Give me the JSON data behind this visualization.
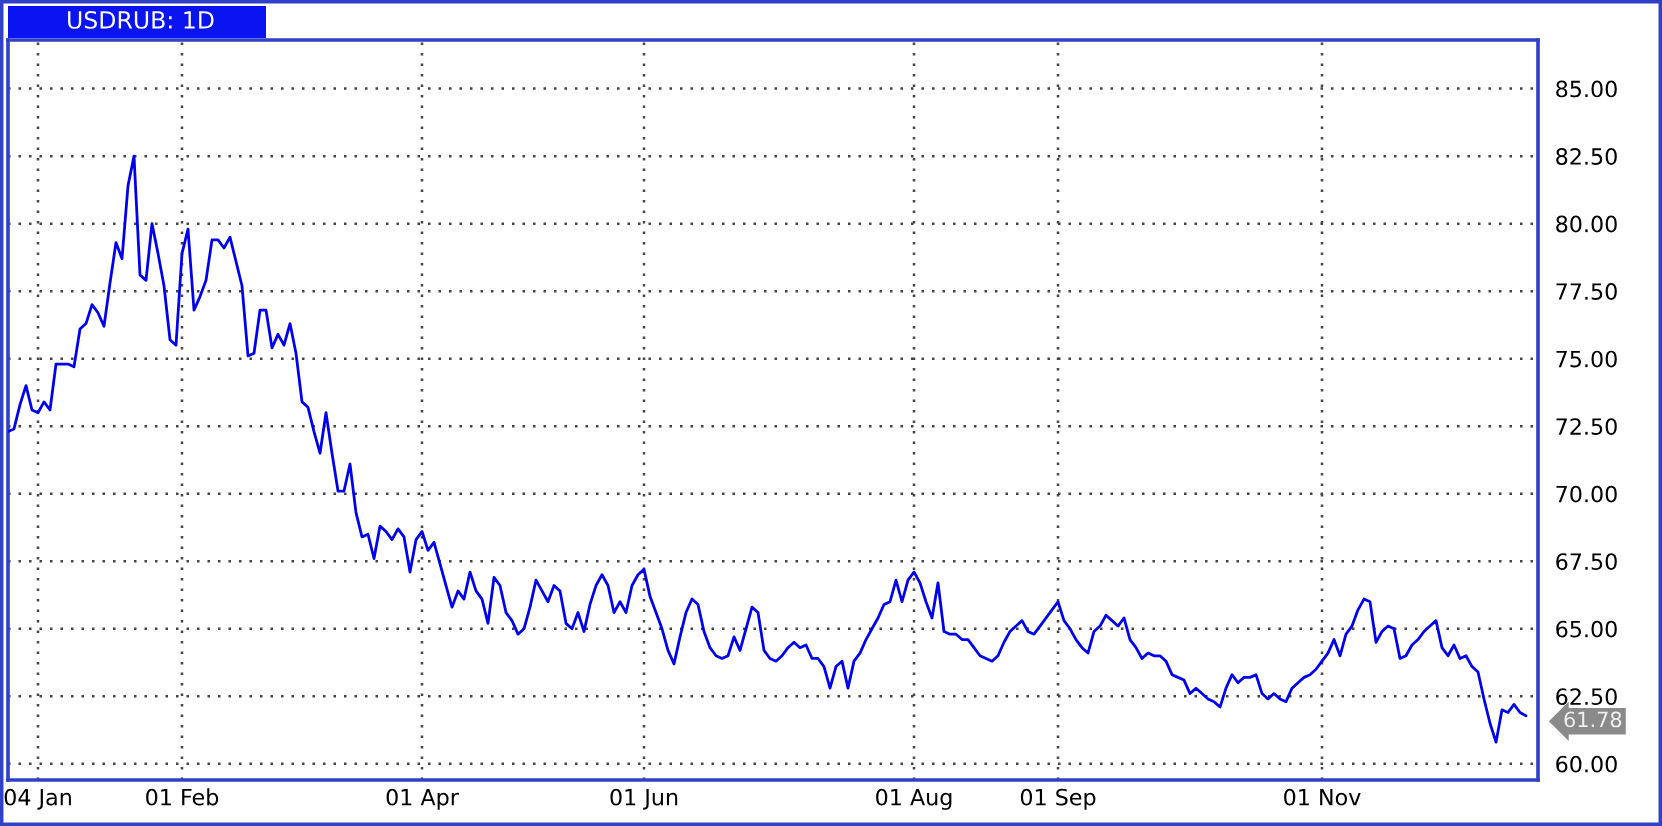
{
  "chart_data": {
    "type": "line",
    "title": "USDRUB: 1D",
    "categories": [
      null,
      null,
      null,
      null,
      null,
      "04 Jan",
      null,
      null,
      null,
      null,
      null,
      null,
      null,
      null,
      null,
      null,
      null,
      null,
      null,
      null,
      null,
      null,
      null,
      null,
      null,
      null,
      null,
      null,
      null,
      "01 Feb",
      null,
      null,
      null,
      null,
      null,
      null,
      null,
      null,
      null,
      null,
      null,
      null,
      null,
      null,
      null,
      null,
      null,
      null,
      null,
      null,
      null,
      null,
      null,
      null,
      null,
      null,
      null,
      null,
      null,
      null,
      null,
      null,
      null,
      null,
      null,
      null,
      null,
      null,
      null,
      "01 Apr",
      null,
      null,
      null,
      null,
      null,
      null,
      null,
      null,
      null,
      null,
      null,
      null,
      null,
      null,
      null,
      null,
      null,
      null,
      null,
      null,
      null,
      null,
      null,
      null,
      null,
      null,
      null,
      null,
      null,
      null,
      null,
      null,
      null,
      null,
      null,
      null,
      "01 Jun",
      null,
      null,
      null,
      null,
      null,
      null,
      null,
      null,
      null,
      null,
      null,
      null,
      null,
      null,
      null,
      null,
      null,
      null,
      null,
      null,
      null,
      null,
      null,
      null,
      null,
      null,
      null,
      null,
      null,
      null,
      null,
      null,
      null,
      null,
      null,
      null,
      null,
      null,
      null,
      null,
      null,
      null,
      null,
      null,
      "01 Aug",
      null,
      null,
      null,
      null,
      null,
      null,
      null,
      null,
      null,
      null,
      null,
      null,
      null,
      null,
      null,
      null,
      null,
      null,
      null,
      null,
      null,
      null,
      null,
      "01 Sep",
      null,
      null,
      null,
      null,
      null,
      null,
      null,
      null,
      null,
      null,
      null,
      null,
      null,
      null,
      null,
      null,
      null,
      null,
      null,
      null,
      null,
      null,
      null,
      null,
      null,
      null,
      null,
      null,
      null,
      null,
      null,
      null,
      null,
      null,
      null,
      null,
      null,
      null,
      null,
      null,
      null,
      null,
      null,
      "01 Nov",
      null,
      null,
      null,
      null,
      null,
      null,
      null,
      null,
      null,
      null,
      null,
      null,
      null,
      null,
      null,
      null,
      null,
      null,
      null,
      null,
      null,
      null,
      null,
      null,
      null,
      null,
      null,
      null,
      null,
      null,
      null,
      null,
      null,
      null
    ],
    "series": [
      {
        "color": "#0000ee",
        "values": [
          72.3,
          72.4,
          73.3,
          74.0,
          73.1,
          73.0,
          73.4,
          73.1,
          74.8,
          74.8,
          74.8,
          74.7,
          76.1,
          76.3,
          77.0,
          76.7,
          76.2,
          77.8,
          79.3,
          78.7,
          81.4,
          82.5,
          78.1,
          77.9,
          80.0,
          78.9,
          77.7,
          75.7,
          75.5,
          78.9,
          79.8,
          76.8,
          77.3,
          77.9,
          79.4,
          79.4,
          79.1,
          79.5,
          78.6,
          77.7,
          75.1,
          75.2,
          76.8,
          76.8,
          75.4,
          75.9,
          75.5,
          76.3,
          75.2,
          73.4,
          73.2,
          72.3,
          71.5,
          73.0,
          71.5,
          70.1,
          70.1,
          71.1,
          69.3,
          68.4,
          68.5,
          67.6,
          68.8,
          68.6,
          68.3,
          68.7,
          68.4,
          67.1,
          68.3,
          68.6,
          67.9,
          68.2,
          67.4,
          66.6,
          65.8,
          66.4,
          66.1,
          67.1,
          66.4,
          66.1,
          65.2,
          66.9,
          66.6,
          65.6,
          65.3,
          64.8,
          65.0,
          65.8,
          66.8,
          66.4,
          66.0,
          66.6,
          66.4,
          65.2,
          65.0,
          65.6,
          64.9,
          65.9,
          66.6,
          67.0,
          66.6,
          65.6,
          66.0,
          65.6,
          66.6,
          67.0,
          67.2,
          66.2,
          65.6,
          65.0,
          64.2,
          63.7,
          64.7,
          65.6,
          66.1,
          65.9,
          64.9,
          64.3,
          64.0,
          63.9,
          64.0,
          64.7,
          64.2,
          65.0,
          65.8,
          65.6,
          64.2,
          63.9,
          63.8,
          64.0,
          64.3,
          64.5,
          64.3,
          64.4,
          63.9,
          63.9,
          63.6,
          62.8,
          63.6,
          63.8,
          62.8,
          63.8,
          64.1,
          64.6,
          65.0,
          65.4,
          65.9,
          66.0,
          66.8,
          66.0,
          66.8,
          67.1,
          66.7,
          66.0,
          65.4,
          66.7,
          64.9,
          64.8,
          64.8,
          64.6,
          64.6,
          64.3,
          64.0,
          63.9,
          63.8,
          64.0,
          64.5,
          64.9,
          65.1,
          65.3,
          64.9,
          64.8,
          65.1,
          65.4,
          65.7,
          66.0,
          65.3,
          65.0,
          64.6,
          64.3,
          64.1,
          64.9,
          65.1,
          65.5,
          65.3,
          65.1,
          65.4,
          64.6,
          64.3,
          63.9,
          64.1,
          64.0,
          64.0,
          63.8,
          63.3,
          63.2,
          63.1,
          62.6,
          62.8,
          62.6,
          62.4,
          62.3,
          62.1,
          62.8,
          63.3,
          63.0,
          63.2,
          63.2,
          63.3,
          62.6,
          62.4,
          62.6,
          62.4,
          62.3,
          62.8,
          63.0,
          63.2,
          63.3,
          63.5,
          63.8,
          64.1,
          64.6,
          64.0,
          64.8,
          65.1,
          65.7,
          66.1,
          66.0,
          64.5,
          64.9,
          65.1,
          65.0,
          63.9,
          64.0,
          64.4,
          64.6,
          64.9,
          65.1,
          65.3,
          64.3,
          64.0,
          64.4,
          63.9,
          64.0,
          63.6,
          63.4,
          62.4,
          61.5,
          60.8,
          62.0,
          61.9,
          62.2,
          61.9,
          61.78
        ]
      }
    ],
    "ylim": [
      59.4,
      86.8
    ],
    "yticks": [
      {
        "value": 60,
        "label": "60.00"
      },
      {
        "value": 62.5,
        "label": "62.50"
      },
      {
        "value": 65,
        "label": "65.00"
      },
      {
        "value": 67.5,
        "label": "67.50"
      },
      {
        "value": 70,
        "label": "70.00"
      },
      {
        "value": 72.5,
        "label": "72.50"
      },
      {
        "value": 75,
        "label": "75.00"
      },
      {
        "value": 77.5,
        "label": "77.50"
      },
      {
        "value": 80,
        "label": "80.00"
      },
      {
        "value": 82.5,
        "label": "82.50"
      },
      {
        "value": 85,
        "label": "85.00"
      }
    ],
    "grid": true,
    "annotations": [
      "61.78"
    ]
  }
}
